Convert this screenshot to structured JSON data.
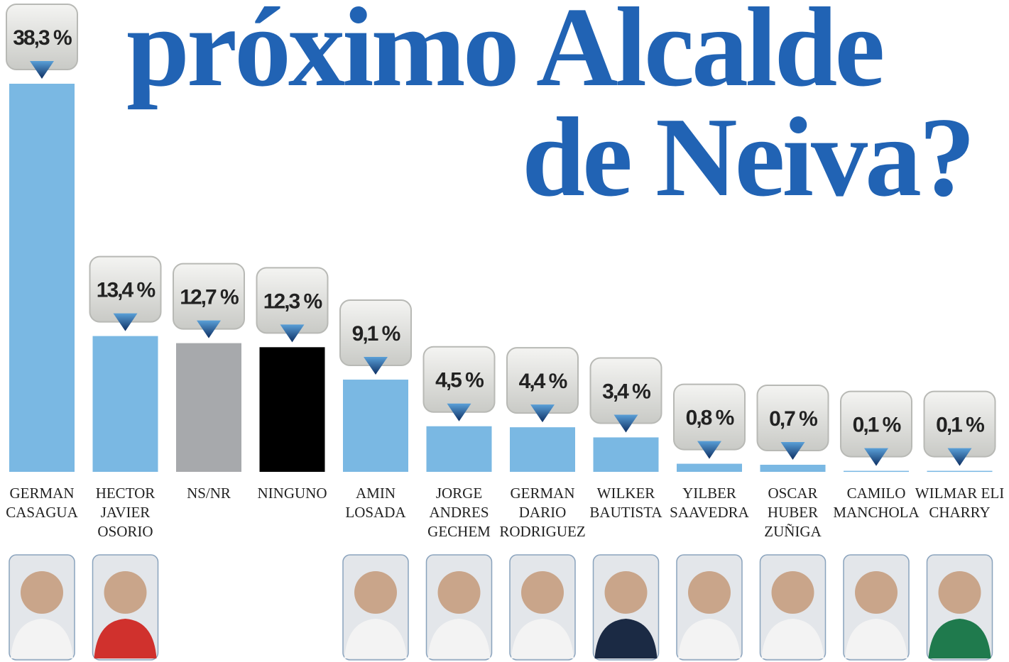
{
  "chart_data": {
    "type": "bar",
    "title": [
      "próximo Alcalde",
      "de Neiva?"
    ],
    "categories": [
      [
        "GERMAN",
        "CASAGUA"
      ],
      [
        "HECTOR",
        "JAVIER",
        "OSORIO"
      ],
      [
        "NS/NR"
      ],
      [
        "NINGUNO"
      ],
      [
        "AMIN",
        "LOSADA"
      ],
      [
        "JORGE",
        "ANDRES",
        "GECHEM"
      ],
      [
        "GERMAN",
        "DARIO",
        "RODRIGUEZ"
      ],
      [
        "WILKER",
        "BAUTISTA"
      ],
      [
        "YILBER",
        "SAAVEDRA"
      ],
      [
        "OSCAR",
        "HUBER",
        "ZUÑIGA"
      ],
      [
        "CAMILO",
        "MANCHOLA"
      ],
      [
        "WILMAR ELI",
        "CHARRY"
      ]
    ],
    "values": [
      38.3,
      13.4,
      12.7,
      12.3,
      9.1,
      4.5,
      4.4,
      3.4,
      0.8,
      0.7,
      0.1,
      0.1
    ],
    "value_labels": [
      "38,3 %",
      "13,4 %",
      "12,7 %",
      "12,3 %",
      "9,1 %",
      "4,5 %",
      "4,4 %",
      "3,4 %",
      "0,8 %",
      "0,7 %",
      "0,1 %",
      "0,1 %"
    ],
    "colors": [
      "#7ab8e3",
      "#7ab8e3",
      "#a7a9ac",
      "#000000",
      "#7ab8e3",
      "#7ab8e3",
      "#7ab8e3",
      "#7ab8e3",
      "#7ab8e3",
      "#7ab8e3",
      "#7ab8e3",
      "#7ab8e3"
    ]
  }
}
